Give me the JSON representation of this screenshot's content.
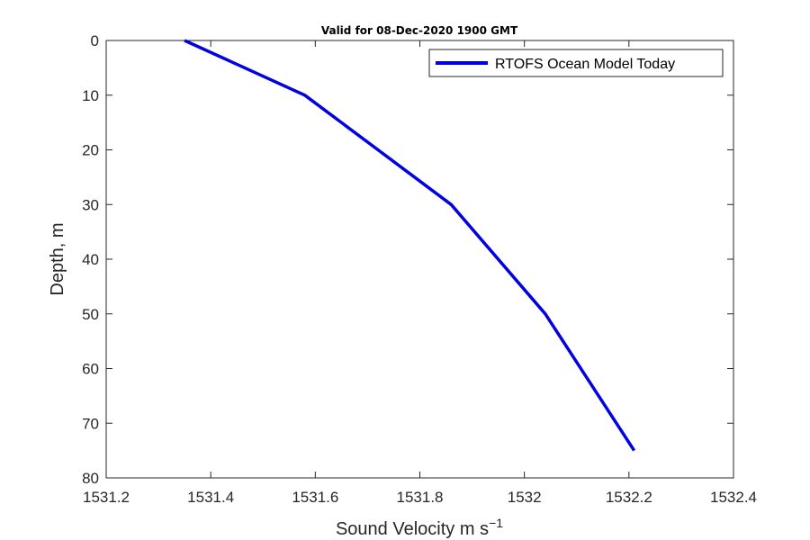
{
  "chart_data": {
    "type": "line",
    "title": "Valid for 08-Dec-2020 1900 GMT",
    "xlabel": "Sound Velocity m s",
    "xlabel_superscript": "−1",
    "ylabel": "Depth, m",
    "xlim": [
      1531.2,
      1532.4
    ],
    "ylim": [
      0,
      80
    ],
    "y_reversed": true,
    "x_ticks": [
      1531.2,
      1531.4,
      1531.6,
      1531.8,
      1532,
      1532.2,
      1532.4
    ],
    "x_tick_labels": [
      "1531.2",
      "1531.4",
      "1531.6",
      "1531.8",
      "1532",
      "1532.2",
      "1532.4"
    ],
    "y_ticks": [
      0,
      10,
      20,
      30,
      40,
      50,
      60,
      70,
      80
    ],
    "y_tick_labels": [
      "0",
      "10",
      "20",
      "30",
      "40",
      "50",
      "60",
      "70",
      "80"
    ],
    "grid": false,
    "legend_position": "top-right",
    "series": [
      {
        "name": "RTOFS Ocean Model Today",
        "color": "#0000e0",
        "points": [
          {
            "x": 1531.35,
            "y": 0
          },
          {
            "x": 1531.58,
            "y": 10
          },
          {
            "x": 1531.72,
            "y": 20
          },
          {
            "x": 1531.86,
            "y": 30
          },
          {
            "x": 1532.04,
            "y": 50
          },
          {
            "x": 1532.21,
            "y": 75
          }
        ]
      }
    ]
  }
}
